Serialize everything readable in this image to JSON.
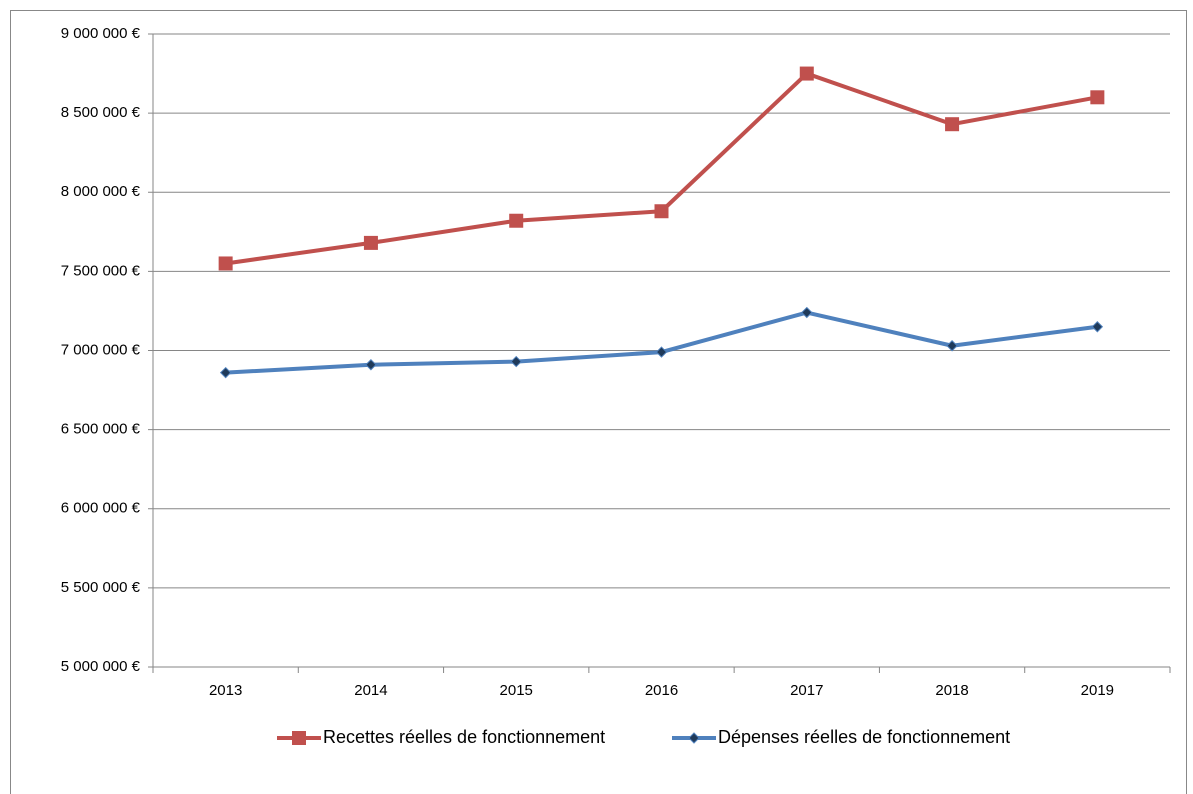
{
  "chart_data": {
    "type": "line",
    "categories": [
      "2013",
      "2014",
      "2015",
      "2016",
      "2017",
      "2018",
      "2019"
    ],
    "series": [
      {
        "name": "Recettes réelles de fonctionnement",
        "color": "#c0504d",
        "marker": "square",
        "values": [
          7550000,
          7680000,
          7820000,
          7880000,
          8750000,
          8430000,
          8600000
        ]
      },
      {
        "name": "Dépenses réelles de fonctionnement",
        "color": "#4f81bd",
        "marker": "diamond",
        "values": [
          6860000,
          6910000,
          6930000,
          6990000,
          7240000,
          7030000,
          7150000
        ]
      }
    ],
    "ylim": [
      5000000,
      9000000
    ],
    "yticks": [
      {
        "value": 5000000,
        "label": "5 000 000 €"
      },
      {
        "value": 5500000,
        "label": "5 500 000 €"
      },
      {
        "value": 6000000,
        "label": "6 000 000 €"
      },
      {
        "value": 6500000,
        "label": "6 500 000 €"
      },
      {
        "value": 7000000,
        "label": "7 000 000 €"
      },
      {
        "value": 7500000,
        "label": "7 500 000 €"
      },
      {
        "value": 8000000,
        "label": "8 000 000 €"
      },
      {
        "value": 8500000,
        "label": "8 500 000 €"
      },
      {
        "value": 9000000,
        "label": "9 000 000 €"
      }
    ],
    "grid": true,
    "legend": "bottom"
  }
}
